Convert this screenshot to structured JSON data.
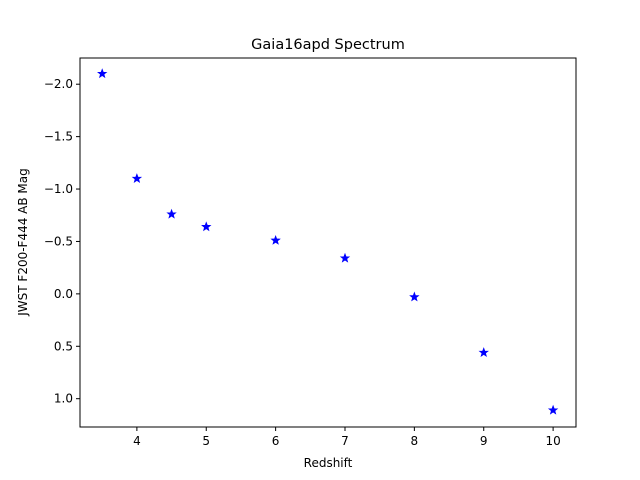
{
  "chart_data": {
    "type": "scatter",
    "title": "Gaia16apd Spectrum",
    "xlabel": "Redshift",
    "ylabel": "JWST F200-F444 AB Mag",
    "xlim": [
      3.18,
      10.33
    ],
    "ylim": [
      1.27,
      -2.25
    ],
    "y_inverted": true,
    "xticks": [
      4,
      5,
      6,
      7,
      8,
      9,
      10
    ],
    "yticks": [
      -2.0,
      -1.5,
      -1.0,
      -0.5,
      0.0,
      0.5,
      1.0
    ],
    "ytick_labels": [
      "−2.0",
      "−1.5",
      "−1.0",
      "−0.5",
      "0.0",
      "0.5",
      "1.0"
    ],
    "marker": "star",
    "marker_color": "#0000ff",
    "grid": false,
    "points": [
      {
        "x": 3.5,
        "y": -2.1
      },
      {
        "x": 4.0,
        "y": -1.1
      },
      {
        "x": 4.5,
        "y": -0.76
      },
      {
        "x": 5.0,
        "y": -0.64
      },
      {
        "x": 6.0,
        "y": -0.51
      },
      {
        "x": 7.0,
        "y": -0.34
      },
      {
        "x": 8.0,
        "y": 0.03
      },
      {
        "x": 9.0,
        "y": 0.56
      },
      {
        "x": 10.0,
        "y": 1.11
      }
    ]
  }
}
